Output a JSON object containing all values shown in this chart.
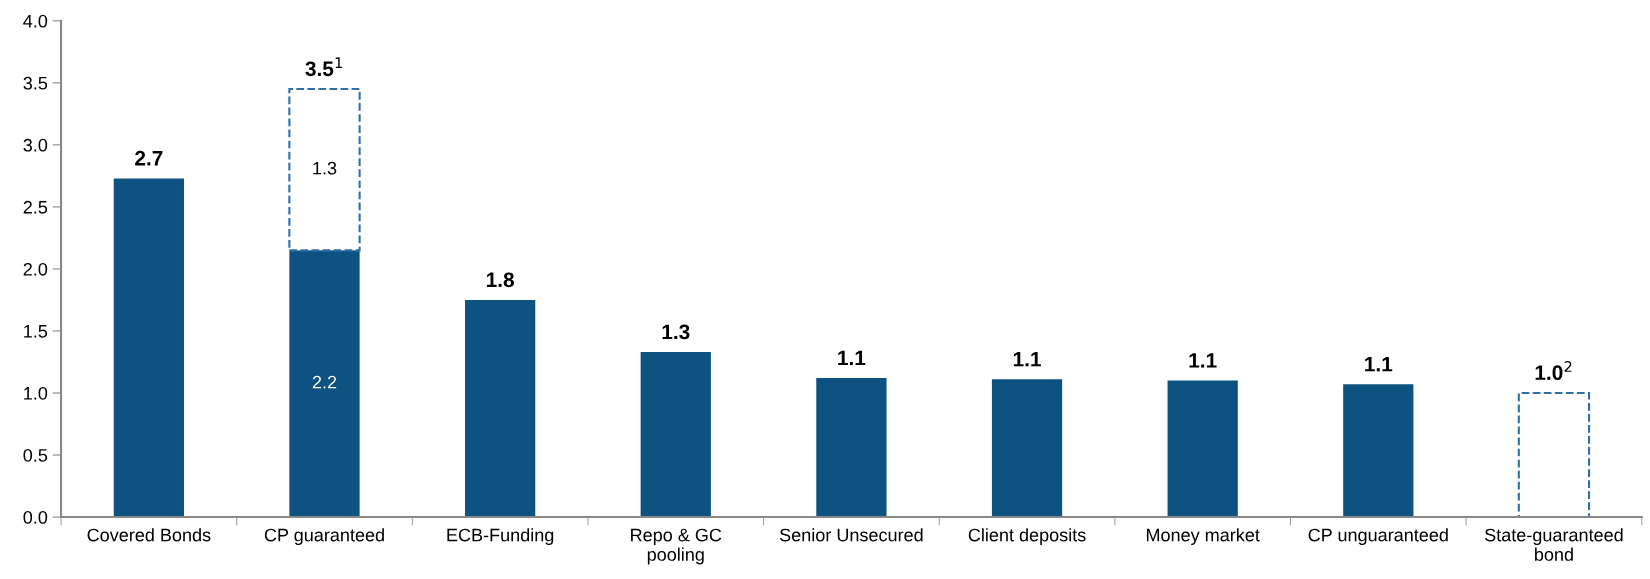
{
  "chart_data": {
    "type": "bar",
    "stacked": true,
    "categories": [
      "Covered Bonds",
      "CP guaranteed",
      "ECB-Funding",
      "Repo & GC\npooling",
      "Senior Unsecured",
      "Client deposits",
      "Money market",
      "CP unguaranteed",
      "State-guaranteed\nbond"
    ],
    "series": [
      {
        "color": "#0e5282",
        "values": [
          2.73,
          2.15,
          1.75,
          1.33,
          1.12,
          1.11,
          1.1,
          1.07,
          null
        ],
        "value_labels": [
          null,
          "2.2",
          null,
          null,
          null,
          null,
          null,
          null,
          null
        ]
      },
      {
        "color": "#2e6fa8",
        "line_style": "dashed",
        "values": [
          null,
          1.3,
          null,
          null,
          null,
          null,
          null,
          null,
          1.0
        ],
        "value_labels": [
          null,
          "1.3",
          null,
          null,
          null,
          null,
          null,
          null,
          null
        ]
      }
    ],
    "totals": [
      "2.7",
      "3.5$^{1}$",
      "1.8",
      "1.3",
      "1.1",
      "1.1",
      "1.1",
      "1.1",
      "1.0$^{2}$"
    ],
    "ylim": [
      0,
      4
    ],
    "yticks": [
      {
        "value": 0,
        "label": "0.0"
      },
      {
        "value": 0.5,
        "label": "0.5"
      },
      {
        "value": 1,
        "label": "1.0"
      },
      {
        "value": 1.5,
        "label": "1.5"
      },
      {
        "value": 2,
        "label": "2.0"
      },
      {
        "value": 2.5,
        "label": "2.5"
      },
      {
        "value": 3,
        "label": "3.0"
      },
      {
        "value": 3.5,
        "label": "3.5"
      },
      {
        "value": 4,
        "label": "4.0"
      }
    ],
    "grid": false,
    "legend": false
  }
}
